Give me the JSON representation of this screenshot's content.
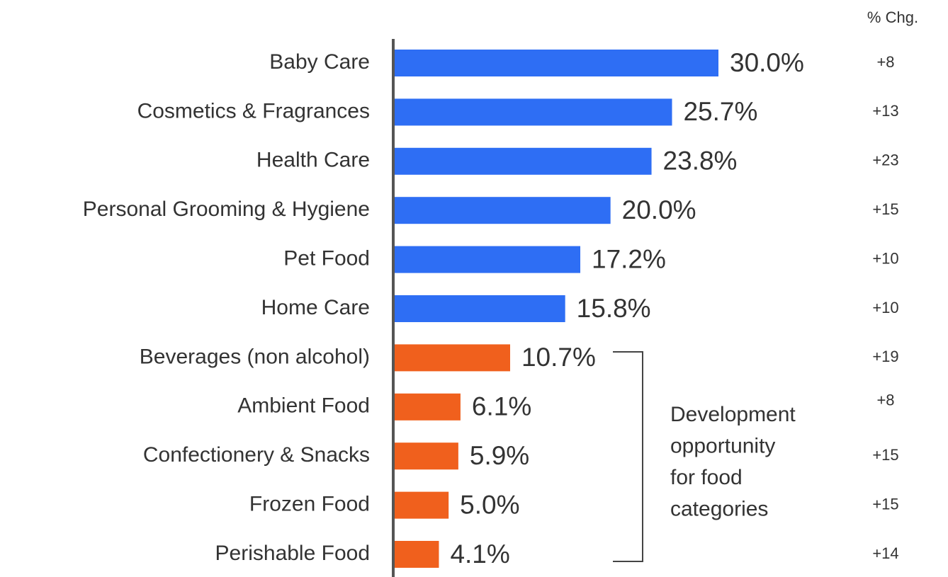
{
  "chart_data": {
    "type": "bar",
    "orientation": "horizontal",
    "categories": [
      "Baby Care",
      "Cosmetics & Fragrances",
      "Health Care",
      "Personal Grooming & Hygiene",
      "Pet Food",
      "Home Care",
      "Beverages (non alcohol)",
      "Ambient Food",
      "Confectionery & Snacks",
      "Frozen Food",
      "Perishable Food"
    ],
    "values": [
      30.0,
      25.7,
      23.8,
      20.0,
      17.2,
      15.8,
      10.7,
      6.1,
      5.9,
      5.0,
      4.1
    ],
    "value_labels": [
      "30.0%",
      "25.7%",
      "23.8%",
      "20.0%",
      "17.2%",
      "15.8%",
      "10.7%",
      "6.1%",
      "5.9%",
      "5.0%",
      "4.1%"
    ],
    "colors": [
      "#2e6ef4",
      "#2e6ef4",
      "#2e6ef4",
      "#2e6ef4",
      "#2e6ef4",
      "#2e6ef4",
      "#f0601d",
      "#f0601d",
      "#f0601d",
      "#f0601d",
      "#f0601d"
    ],
    "change_header": "% Chg.",
    "changes": [
      "+8",
      "+13",
      "+23",
      "+15",
      "+10",
      "+10",
      "+19",
      "+8",
      "+15",
      "+15",
      "+14"
    ],
    "annotation": [
      "Development",
      "opportunity",
      "for food",
      "categories"
    ]
  }
}
